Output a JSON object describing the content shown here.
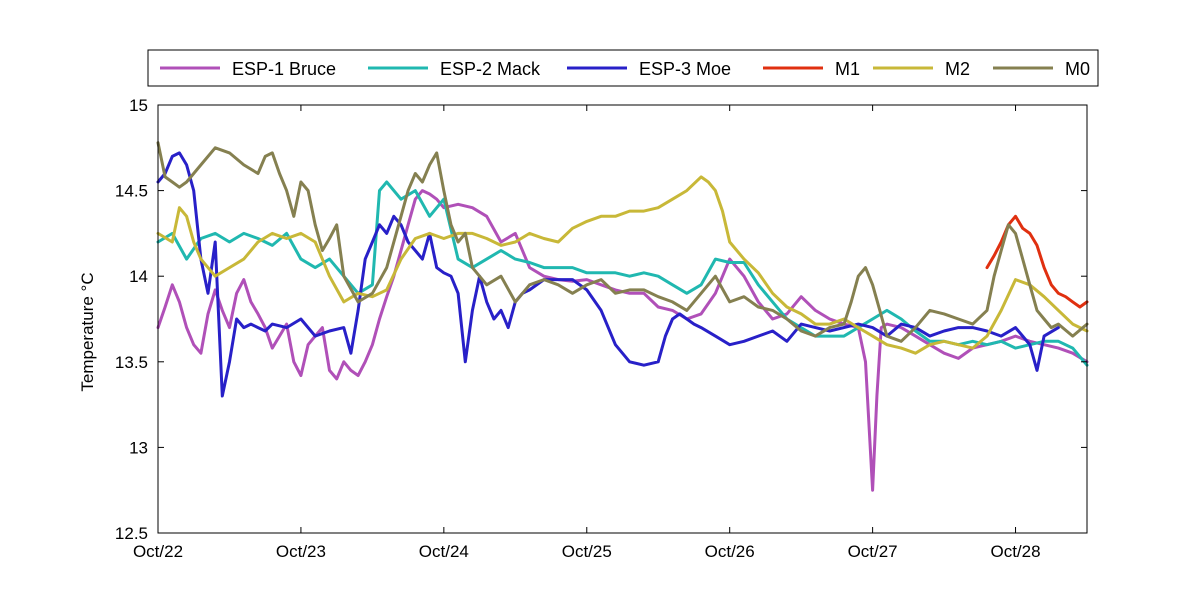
{
  "chart_data": {
    "type": "line",
    "ylabel": "Temperature °C",
    "ylim": [
      12.5,
      15
    ],
    "xlim": [
      0,
      6.5
    ],
    "x_ticks": [
      {
        "x": 0,
        "label": "Oct/22"
      },
      {
        "x": 1,
        "label": "Oct/23"
      },
      {
        "x": 2,
        "label": "Oct/24"
      },
      {
        "x": 3,
        "label": "Oct/25"
      },
      {
        "x": 4,
        "label": "Oct/26"
      },
      {
        "x": 5,
        "label": "Oct/27"
      },
      {
        "x": 6,
        "label": "Oct/28"
      }
    ],
    "y_ticks": [
      {
        "y": 12.5,
        "label": "12.5"
      },
      {
        "y": 13,
        "label": "13"
      },
      {
        "y": 13.5,
        "label": "13.5"
      },
      {
        "y": 14,
        "label": "14"
      },
      {
        "y": 14.5,
        "label": "14.5"
      },
      {
        "y": 15,
        "label": "15"
      }
    ],
    "grid": false,
    "legend_position": "top",
    "series": [
      {
        "name": "ESP-1 Bruce",
        "color": "#B050B8",
        "x": [
          0,
          0.05,
          0.1,
          0.15,
          0.2,
          0.25,
          0.3,
          0.35,
          0.4,
          0.45,
          0.5,
          0.55,
          0.6,
          0.65,
          0.7,
          0.75,
          0.8,
          0.85,
          0.9,
          0.95,
          1.0,
          1.05,
          1.1,
          1.15,
          1.2,
          1.25,
          1.3,
          1.35,
          1.4,
          1.45,
          1.5,
          1.55,
          1.6,
          1.65,
          1.7,
          1.75,
          1.8,
          1.85,
          1.9,
          1.95,
          2.0,
          2.1,
          2.2,
          2.3,
          2.4,
          2.5,
          2.6,
          2.7,
          2.8,
          2.9,
          3.0,
          3.1,
          3.2,
          3.3,
          3.4,
          3.5,
          3.6,
          3.7,
          3.8,
          3.9,
          4.0,
          4.1,
          4.2,
          4.3,
          4.4,
          4.5,
          4.6,
          4.7,
          4.8,
          4.9,
          4.95,
          5.0,
          5.03,
          5.06,
          5.1,
          5.2,
          5.3,
          5.4,
          5.5,
          5.6,
          5.7,
          5.8,
          5.9,
          6.0,
          6.1,
          6.2,
          6.3,
          6.4,
          6.5
        ],
        "y": [
          13.7,
          13.82,
          13.95,
          13.85,
          13.7,
          13.6,
          13.55,
          13.78,
          13.92,
          13.8,
          13.7,
          13.9,
          13.98,
          13.85,
          13.78,
          13.7,
          13.58,
          13.65,
          13.72,
          13.5,
          13.42,
          13.6,
          13.65,
          13.7,
          13.45,
          13.4,
          13.5,
          13.45,
          13.42,
          13.5,
          13.6,
          13.75,
          13.88,
          14.0,
          14.15,
          14.3,
          14.45,
          14.5,
          14.48,
          14.45,
          14.4,
          14.42,
          14.4,
          14.35,
          14.2,
          14.25,
          14.05,
          14.0,
          13.98,
          13.97,
          13.98,
          13.95,
          13.92,
          13.9,
          13.9,
          13.82,
          13.8,
          13.75,
          13.78,
          13.9,
          14.1,
          14.0,
          13.85,
          13.75,
          13.78,
          13.88,
          13.8,
          13.75,
          13.72,
          13.7,
          13.5,
          12.75,
          13.3,
          13.7,
          13.72,
          13.7,
          13.65,
          13.6,
          13.55,
          13.52,
          13.58,
          13.6,
          13.62,
          13.65,
          13.62,
          13.6,
          13.58,
          13.55,
          13.5
        ]
      },
      {
        "name": "ESP-2 Mack",
        "color": "#20B8B0",
        "x": [
          0,
          0.1,
          0.2,
          0.3,
          0.4,
          0.5,
          0.6,
          0.7,
          0.8,
          0.9,
          1.0,
          1.1,
          1.2,
          1.3,
          1.4,
          1.5,
          1.55,
          1.6,
          1.7,
          1.8,
          1.9,
          2.0,
          2.1,
          2.2,
          2.3,
          2.4,
          2.5,
          2.6,
          2.7,
          2.8,
          2.9,
          3.0,
          3.1,
          3.2,
          3.3,
          3.4,
          3.5,
          3.6,
          3.7,
          3.8,
          3.9,
          4.0,
          4.1,
          4.2,
          4.3,
          4.4,
          4.5,
          4.6,
          4.7,
          4.8,
          4.9,
          5.0,
          5.1,
          5.2,
          5.3,
          5.4,
          5.5,
          5.6,
          5.7,
          5.8,
          5.9,
          6.0,
          6.1,
          6.2,
          6.3,
          6.4,
          6.5
        ],
        "y": [
          14.2,
          14.25,
          14.1,
          14.22,
          14.25,
          14.2,
          14.25,
          14.22,
          14.18,
          14.25,
          14.1,
          14.05,
          14.1,
          14.0,
          13.9,
          13.95,
          14.5,
          14.55,
          14.45,
          14.5,
          14.35,
          14.45,
          14.1,
          14.05,
          14.1,
          14.15,
          14.1,
          14.08,
          14.05,
          14.05,
          14.05,
          14.02,
          14.02,
          14.02,
          14.0,
          14.02,
          14.0,
          13.95,
          13.9,
          13.95,
          14.1,
          14.08,
          14.08,
          13.95,
          13.85,
          13.75,
          13.7,
          13.65,
          13.65,
          13.65,
          13.7,
          13.75,
          13.8,
          13.75,
          13.68,
          13.62,
          13.62,
          13.6,
          13.62,
          13.6,
          13.62,
          13.58,
          13.6,
          13.62,
          13.62,
          13.58,
          13.48
        ]
      },
      {
        "name": "ESP-3 Moe",
        "color": "#2820C8",
        "x": [
          0,
          0.05,
          0.1,
          0.15,
          0.2,
          0.25,
          0.3,
          0.35,
          0.4,
          0.45,
          0.5,
          0.55,
          0.6,
          0.65,
          0.7,
          0.75,
          0.8,
          0.9,
          1.0,
          1.1,
          1.2,
          1.3,
          1.35,
          1.4,
          1.45,
          1.5,
          1.55,
          1.6,
          1.65,
          1.7,
          1.75,
          1.8,
          1.85,
          1.9,
          1.95,
          2.0,
          2.05,
          2.1,
          2.15,
          2.2,
          2.25,
          2.3,
          2.35,
          2.4,
          2.45,
          2.5,
          2.55,
          2.6,
          2.7,
          2.8,
          2.9,
          3.0,
          3.1,
          3.2,
          3.3,
          3.4,
          3.5,
          3.55,
          3.6,
          3.65,
          3.7,
          3.75,
          3.8,
          3.9,
          4.0,
          4.1,
          4.2,
          4.3,
          4.4,
          4.5,
          4.6,
          4.7,
          4.8,
          4.9,
          5.0,
          5.1,
          5.2,
          5.3,
          5.4,
          5.5,
          5.6,
          5.7,
          5.8,
          5.9,
          6.0,
          6.05,
          6.1,
          6.15,
          6.2,
          6.3
        ],
        "y": [
          14.55,
          14.6,
          14.7,
          14.72,
          14.65,
          14.5,
          14.1,
          13.9,
          14.2,
          13.3,
          13.5,
          13.75,
          13.7,
          13.72,
          13.7,
          13.68,
          13.72,
          13.7,
          13.75,
          13.65,
          13.68,
          13.7,
          13.55,
          13.8,
          14.1,
          14.2,
          14.3,
          14.25,
          14.35,
          14.3,
          14.2,
          14.15,
          14.1,
          14.25,
          14.05,
          14.02,
          14.0,
          13.9,
          13.5,
          13.8,
          14.0,
          13.85,
          13.75,
          13.8,
          13.7,
          13.85,
          13.9,
          13.92,
          13.98,
          13.98,
          13.98,
          13.92,
          13.8,
          13.6,
          13.5,
          13.48,
          13.5,
          13.65,
          13.75,
          13.78,
          13.75,
          13.72,
          13.7,
          13.65,
          13.6,
          13.62,
          13.65,
          13.68,
          13.62,
          13.72,
          13.7,
          13.68,
          13.7,
          13.72,
          13.7,
          13.65,
          13.72,
          13.7,
          13.65,
          13.68,
          13.7,
          13.7,
          13.68,
          13.65,
          13.7,
          13.65,
          13.6,
          13.45,
          13.65,
          13.7
        ]
      },
      {
        "name": "M1",
        "color": "#E03010",
        "x": [
          5.8,
          5.85,
          5.9,
          5.95,
          6.0,
          6.05,
          6.1,
          6.15,
          6.2,
          6.25,
          6.3,
          6.35,
          6.4,
          6.45,
          6.5
        ],
        "y": [
          14.05,
          14.12,
          14.2,
          14.3,
          14.35,
          14.28,
          14.25,
          14.18,
          14.05,
          13.95,
          13.9,
          13.88,
          13.85,
          13.82,
          13.85
        ]
      },
      {
        "name": "M2",
        "color": "#C8B838",
        "x": [
          0,
          0.1,
          0.15,
          0.2,
          0.25,
          0.3,
          0.4,
          0.5,
          0.6,
          0.7,
          0.8,
          0.9,
          1.0,
          1.1,
          1.2,
          1.3,
          1.4,
          1.5,
          1.6,
          1.7,
          1.8,
          1.9,
          2.0,
          2.1,
          2.2,
          2.3,
          2.4,
          2.5,
          2.6,
          2.7,
          2.8,
          2.9,
          3.0,
          3.1,
          3.2,
          3.3,
          3.4,
          3.5,
          3.6,
          3.7,
          3.8,
          3.85,
          3.9,
          3.95,
          4.0,
          4.1,
          4.2,
          4.3,
          4.4,
          4.5,
          4.6,
          4.7,
          4.8,
          4.9,
          5.0,
          5.1,
          5.2,
          5.3,
          5.4,
          5.5,
          5.6,
          5.7,
          5.8,
          5.9,
          6.0,
          6.1,
          6.2,
          6.3,
          6.4,
          6.5
        ],
        "y": [
          14.25,
          14.2,
          14.4,
          14.35,
          14.2,
          14.1,
          14.0,
          14.05,
          14.1,
          14.2,
          14.25,
          14.22,
          14.25,
          14.2,
          14.0,
          13.85,
          13.9,
          13.88,
          13.92,
          14.1,
          14.22,
          14.25,
          14.22,
          14.25,
          14.25,
          14.22,
          14.18,
          14.2,
          14.25,
          14.22,
          14.2,
          14.28,
          14.32,
          14.35,
          14.35,
          14.38,
          14.38,
          14.4,
          14.45,
          14.5,
          14.58,
          14.55,
          14.5,
          14.38,
          14.2,
          14.1,
          14.02,
          13.9,
          13.82,
          13.78,
          13.72,
          13.72,
          13.75,
          13.7,
          13.65,
          13.6,
          13.58,
          13.55,
          13.6,
          13.62,
          13.6,
          13.58,
          13.65,
          13.8,
          13.98,
          13.95,
          13.88,
          13.8,
          13.72,
          13.68
        ]
      },
      {
        "name": "M0",
        "color": "#858050",
        "x": [
          0,
          0.05,
          0.1,
          0.15,
          0.2,
          0.25,
          0.3,
          0.4,
          0.5,
          0.6,
          0.7,
          0.75,
          0.8,
          0.85,
          0.9,
          0.95,
          1.0,
          1.05,
          1.1,
          1.15,
          1.2,
          1.25,
          1.3,
          1.4,
          1.5,
          1.6,
          1.7,
          1.75,
          1.8,
          1.85,
          1.9,
          1.95,
          2.0,
          2.05,
          2.1,
          2.15,
          2.2,
          2.3,
          2.4,
          2.5,
          2.6,
          2.7,
          2.8,
          2.9,
          3.0,
          3.1,
          3.2,
          3.3,
          3.4,
          3.5,
          3.6,
          3.7,
          3.8,
          3.9,
          4.0,
          4.1,
          4.2,
          4.3,
          4.4,
          4.5,
          4.6,
          4.7,
          4.8,
          4.85,
          4.9,
          4.95,
          5.0,
          5.05,
          5.1,
          5.2,
          5.3,
          5.4,
          5.5,
          5.6,
          5.7,
          5.8,
          5.85,
          5.9,
          5.95,
          6.0,
          6.05,
          6.1,
          6.15,
          6.2,
          6.25,
          6.3,
          6.4,
          6.5
        ],
        "y": [
          14.78,
          14.58,
          14.55,
          14.52,
          14.55,
          14.6,
          14.65,
          14.75,
          14.72,
          14.65,
          14.6,
          14.7,
          14.72,
          14.6,
          14.5,
          14.35,
          14.55,
          14.5,
          14.3,
          14.15,
          14.22,
          14.3,
          14.0,
          13.85,
          13.9,
          14.05,
          14.35,
          14.5,
          14.6,
          14.55,
          14.65,
          14.72,
          14.5,
          14.3,
          14.2,
          14.25,
          14.05,
          13.95,
          14.0,
          13.85,
          13.95,
          13.98,
          13.95,
          13.9,
          13.95,
          13.98,
          13.9,
          13.92,
          13.92,
          13.88,
          13.85,
          13.8,
          13.9,
          14.0,
          13.85,
          13.88,
          13.82,
          13.8,
          13.75,
          13.68,
          13.65,
          13.7,
          13.72,
          13.85,
          14.0,
          14.05,
          13.95,
          13.8,
          13.65,
          13.62,
          13.7,
          13.8,
          13.78,
          13.75,
          13.72,
          13.8,
          14.0,
          14.15,
          14.3,
          14.25,
          14.1,
          13.95,
          13.8,
          13.75,
          13.7,
          13.72,
          13.65,
          13.72
        ]
      }
    ]
  }
}
